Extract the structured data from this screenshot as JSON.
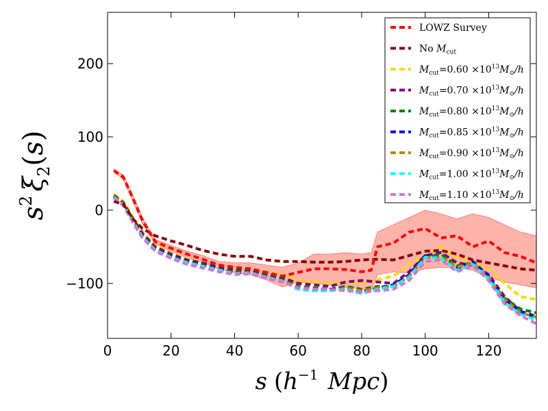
{
  "chart_data": {
    "type": "line",
    "xlabel": "s (h⁻¹ Mpc)",
    "ylabel": "s² ξ₂(s)",
    "xlim": [
      0,
      135
    ],
    "ylim": [
      -175,
      270
    ],
    "x_ticks": [
      0,
      20,
      40,
      60,
      80,
      100,
      120
    ],
    "x_tick_labels": [
      "0",
      "20",
      "40",
      "60",
      "80",
      "100",
      "120"
    ],
    "y_ticks": [
      -100,
      0,
      100,
      200
    ],
    "y_tick_labels": [
      "−100",
      "0",
      "100",
      "200"
    ],
    "grid": false,
    "legend_position": "top-right",
    "band": {
      "name": "LOWZ Survey error band",
      "color": "#fa8072",
      "x": [
        2,
        5,
        8,
        11,
        15,
        20,
        25,
        30,
        35,
        40,
        45,
        50,
        55,
        60,
        65,
        70,
        75,
        80,
        83,
        85,
        90,
        95,
        100,
        105,
        110,
        115,
        120,
        125,
        130,
        135
      ],
      "lower": [
        52,
        42,
        12,
        -18,
        -46,
        -56,
        -65,
        -72,
        -80,
        -85,
        -88,
        -95,
        -105,
        -98,
        -100,
        -102,
        -105,
        -108,
        -110,
        -88,
        -84,
        -86,
        -80,
        -78,
        -78,
        -82,
        -92,
        -98,
        -102,
        -106
      ],
      "upper": [
        56,
        48,
        20,
        -10,
        -40,
        -48,
        -56,
        -62,
        -70,
        -72,
        -72,
        -75,
        -78,
        -72,
        -60,
        -60,
        -58,
        -60,
        -58,
        -30,
        -20,
        -10,
        0,
        -5,
        -12,
        -5,
        -10,
        -20,
        -30,
        -35
      ]
    },
    "series": [
      {
        "name": "LOWZ Survey",
        "label_plain": "LOWZ Survey",
        "color": "#ff0000",
        "x": [
          2,
          5,
          8,
          11,
          15,
          20,
          25,
          30,
          35,
          40,
          45,
          50,
          55,
          60,
          65,
          70,
          75,
          80,
          83,
          85,
          90,
          95,
          100,
          105,
          110,
          115,
          120,
          125,
          130,
          135
        ],
        "y": [
          54,
          45,
          16,
          -14,
          -43,
          -52,
          -60,
          -67,
          -75,
          -78,
          -80,
          -85,
          -90,
          -85,
          -80,
          -80,
          -81,
          -84,
          -82,
          -50,
          -45,
          -30,
          -25,
          -38,
          -35,
          -50,
          -42,
          -58,
          -63,
          -72
        ]
      },
      {
        "name": "No Mcut",
        "label_plain": "No ",
        "label_math": "M",
        "label_sub": "cut",
        "color": "#8b0000",
        "x": [
          2,
          5,
          8,
          11,
          15,
          20,
          25,
          30,
          35,
          40,
          45,
          50,
          55,
          60,
          65,
          70,
          75,
          80,
          85,
          90,
          95,
          100,
          105,
          110,
          115,
          120,
          125,
          130,
          135
        ],
        "y": [
          12,
          8,
          -12,
          -25,
          -35,
          -42,
          -48,
          -55,
          -60,
          -63,
          -63,
          -68,
          -70,
          -70,
          -71,
          -71,
          -70,
          -68,
          -67,
          -68,
          -62,
          -56,
          -55,
          -60,
          -68,
          -72,
          -76,
          -80,
          -82
        ]
      },
      {
        "name": "Mcut=0.60x10^13 Msun/h",
        "value": "0.60",
        "color": "#ffd700",
        "x": [
          2,
          5,
          8,
          11,
          15,
          20,
          25,
          30,
          35,
          40,
          45,
          50,
          55,
          60,
          65,
          70,
          75,
          80,
          85,
          90,
          95,
          100,
          105,
          110,
          115,
          120,
          125,
          130,
          135
        ],
        "y": [
          22,
          12,
          -10,
          -30,
          -48,
          -58,
          -66,
          -70,
          -75,
          -78,
          -80,
          -84,
          -88,
          -96,
          -98,
          -100,
          -98,
          -100,
          -95,
          -90,
          -75,
          -60,
          -50,
          -65,
          -70,
          -80,
          -100,
          -118,
          -122
        ]
      },
      {
        "name": "Mcut=0.70x10^13 Msun/h",
        "value": "0.70",
        "color": "#800080",
        "x": [
          2,
          5,
          8,
          11,
          15,
          20,
          25,
          30,
          35,
          40,
          45,
          50,
          55,
          60,
          65,
          70,
          75,
          80,
          85,
          90,
          95,
          100,
          105,
          110,
          115,
          120,
          125,
          130,
          135
        ],
        "y": [
          20,
          10,
          -12,
          -32,
          -50,
          -60,
          -68,
          -72,
          -78,
          -82,
          -80,
          -86,
          -92,
          -100,
          -102,
          -104,
          -98,
          -96,
          -98,
          -100,
          -84,
          -62,
          -58,
          -72,
          -75,
          -88,
          -118,
          -138,
          -148
        ]
      },
      {
        "name": "Mcut=0.80x10^13 Msun/h",
        "value": "0.80",
        "color": "#008000",
        "x": [
          2,
          5,
          8,
          11,
          15,
          20,
          25,
          30,
          35,
          40,
          45,
          50,
          55,
          60,
          65,
          70,
          75,
          80,
          85,
          90,
          95,
          100,
          105,
          110,
          115,
          120,
          125,
          130,
          135
        ],
        "y": [
          19,
          9,
          -14,
          -34,
          -52,
          -62,
          -70,
          -74,
          -80,
          -84,
          -82,
          -88,
          -94,
          -104,
          -106,
          -108,
          -104,
          -108,
          -104,
          -104,
          -90,
          -64,
          -60,
          -76,
          -72,
          -94,
          -120,
          -135,
          -140
        ]
      },
      {
        "name": "Mcut=0.85x10^13 Msun/h",
        "value": "0.85",
        "color": "#0000ff",
        "x": [
          2,
          5,
          8,
          11,
          15,
          20,
          25,
          30,
          35,
          40,
          45,
          50,
          55,
          60,
          65,
          70,
          75,
          80,
          85,
          90,
          95,
          100,
          105,
          110,
          115,
          120,
          125,
          130,
          135
        ],
        "y": [
          18,
          8,
          -15,
          -35,
          -53,
          -63,
          -70,
          -75,
          -80,
          -86,
          -84,
          -90,
          -95,
          -108,
          -110,
          -108,
          -106,
          -112,
          -106,
          -102,
          -88,
          -62,
          -66,
          -80,
          -70,
          -90,
          -124,
          -138,
          -145
        ]
      },
      {
        "name": "Mcut=0.90x10^13 Msun/h",
        "value": "0.90",
        "color": "#b8860b",
        "x": [
          2,
          5,
          8,
          11,
          15,
          20,
          25,
          30,
          35,
          40,
          45,
          50,
          55,
          60,
          65,
          70,
          75,
          80,
          85,
          90,
          95,
          100,
          105,
          110,
          115,
          120,
          125,
          130,
          135
        ],
        "y": [
          18,
          8,
          -15,
          -36,
          -54,
          -64,
          -71,
          -76,
          -81,
          -86,
          -85,
          -91,
          -96,
          -106,
          -108,
          -110,
          -106,
          -110,
          -106,
          -104,
          -90,
          -65,
          -64,
          -78,
          -72,
          -92,
          -122,
          -140,
          -146
        ]
      },
      {
        "name": "Mcut=1.00x10^13 Msun/h",
        "value": "1.00",
        "color": "#00ffff",
        "x": [
          2,
          5,
          8,
          11,
          15,
          20,
          25,
          30,
          35,
          40,
          45,
          50,
          55,
          60,
          65,
          70,
          75,
          80,
          85,
          90,
          95,
          100,
          105,
          110,
          115,
          120,
          125,
          130,
          135
        ],
        "y": [
          18,
          7,
          -16,
          -37,
          -55,
          -65,
          -72,
          -77,
          -82,
          -87,
          -86,
          -92,
          -97,
          -108,
          -110,
          -110,
          -108,
          -114,
          -108,
          -104,
          -92,
          -64,
          -66,
          -82,
          -74,
          -94,
          -126,
          -142,
          -150
        ]
      },
      {
        "name": "Mcut=1.10x10^13 Msun/h",
        "value": "1.10",
        "color": "#da70d6",
        "x": [
          2,
          5,
          8,
          11,
          15,
          20,
          25,
          30,
          35,
          40,
          45,
          50,
          55,
          60,
          65,
          70,
          75,
          80,
          85,
          90,
          95,
          100,
          105,
          110,
          115,
          120,
          125,
          130,
          135
        ],
        "y": [
          17,
          6,
          -17,
          -38,
          -56,
          -66,
          -74,
          -79,
          -84,
          -88,
          -87,
          -93,
          -98,
          -106,
          -108,
          -108,
          -110,
          -112,
          -110,
          -108,
          -96,
          -70,
          -68,
          -84,
          -76,
          -96,
          -128,
          -144,
          -155
        ]
      }
    ],
    "legend_mcut_parts": {
      "prefix": "M",
      "sub": "cut",
      "eq": "=",
      "times10": "×10",
      "exp": "13",
      "unit_m": "M",
      "unit_sub": "⊙",
      "unit_h": "/h"
    }
  }
}
